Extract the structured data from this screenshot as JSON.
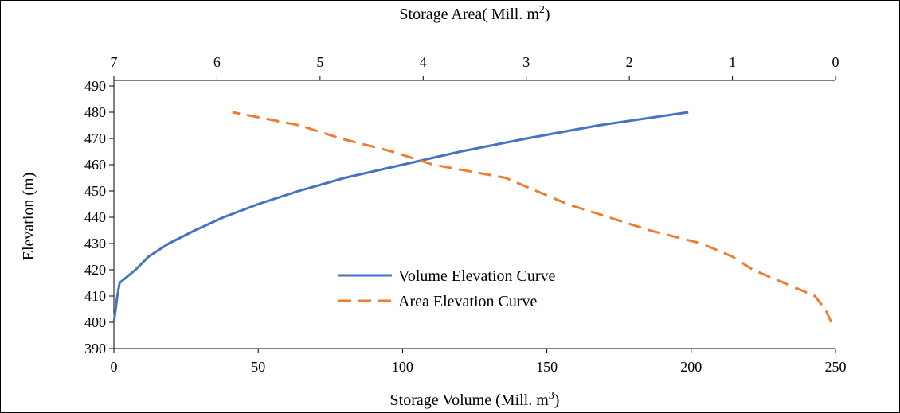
{
  "chart_data": {
    "type": "line",
    "xlabel": "Storage Volume (Mill. m",
    "xlabel_sup": "3",
    "xlabel_end": ")",
    "x2label": "Storage Area( Mill. m",
    "x2label_sup": "2",
    "x2label_end": ")",
    "ylabel": "Elevation (m)",
    "xlim": [
      0,
      250
    ],
    "x2lim": [
      7,
      0
    ],
    "ylim": [
      390,
      490
    ],
    "x_ticks": [
      "0",
      "50",
      "100",
      "150",
      "200",
      "250"
    ],
    "x2_ticks": [
      "7",
      "6",
      "5",
      "4",
      "3",
      "2",
      "1",
      "0"
    ],
    "y_ticks": [
      "390",
      "400",
      "410",
      "420",
      "430",
      "440",
      "450",
      "460",
      "470",
      "480",
      "490"
    ],
    "grid": false,
    "legend_position": "center",
    "series": [
      {
        "name": "Volume Elevation Curve",
        "axis": "bottom",
        "color": "#4472c4",
        "style": "solid",
        "points": [
          [
            0,
            400
          ],
          [
            0.6,
            405
          ],
          [
            1.2,
            410
          ],
          [
            2,
            415
          ],
          [
            7.5,
            420
          ],
          [
            12,
            425
          ],
          [
            19,
            430
          ],
          [
            28,
            435
          ],
          [
            38,
            440
          ],
          [
            50,
            445
          ],
          [
            64,
            450
          ],
          [
            80,
            455
          ],
          [
            100,
            460
          ],
          [
            120,
            465
          ],
          [
            143,
            470
          ],
          [
            168,
            475
          ],
          [
            199,
            480
          ]
        ]
      },
      {
        "name": "Area Elevation Curve",
        "axis": "top",
        "color": "#ed7d31",
        "style": "dashed",
        "points": [
          [
            0.04,
            400
          ],
          [
            0.1,
            405
          ],
          [
            0.2,
            410
          ],
          [
            0.5,
            415
          ],
          [
            0.8,
            420
          ],
          [
            1.0,
            425
          ],
          [
            1.3,
            430
          ],
          [
            1.8,
            435
          ],
          [
            2.2,
            440
          ],
          [
            2.6,
            445
          ],
          [
            2.9,
            450
          ],
          [
            3.2,
            455
          ],
          [
            3.9,
            460
          ],
          [
            4.3,
            465
          ],
          [
            4.8,
            470
          ],
          [
            5.2,
            475
          ],
          [
            5.85,
            480
          ]
        ]
      }
    ]
  }
}
